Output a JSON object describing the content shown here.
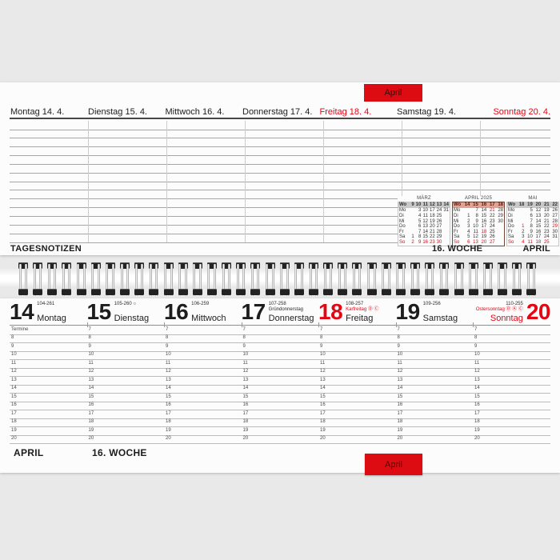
{
  "colors": {
    "accent_red": "#e30613",
    "tab_red": "#dd0b12",
    "page_bg": "#fcfcfd",
    "background": "#e9e9e9",
    "minical_header_bg": "#c9c9c9",
    "minical_april_header_bg": "#e0a292"
  },
  "tabs": {
    "top_label": "April",
    "bottom_label": "April"
  },
  "top_page": {
    "day_headers": [
      {
        "label": "Montag 14. 4.",
        "red": false
      },
      {
        "label": "Dienstag 15. 4.",
        "red": false
      },
      {
        "label": "Mittwoch 16. 4.",
        "red": false
      },
      {
        "label": "Donnerstag 17. 4.",
        "red": false
      },
      {
        "label": "Freitag 18. 4.",
        "red": true
      },
      {
        "label": "Samstag 19. 4.",
        "red": false
      },
      {
        "label": "Sonntag 20. 4.",
        "red": true
      }
    ],
    "notes_label": "TAGESNOTIZEN",
    "week_label": "16. WOCHE",
    "month_label": "APRIL",
    "mini_calendars": [
      {
        "title": "MÄRZ",
        "highlight": false,
        "week_col_label": "Wo",
        "weeks": [
          "9",
          "10",
          "11",
          "12",
          "13",
          "14"
        ],
        "rows": [
          {
            "d": "Mo",
            "red": false,
            "cells": [
              "",
              "3",
              "10",
              "17",
              "24",
              "31"
            ],
            "red_cells": []
          },
          {
            "d": "Di",
            "red": false,
            "cells": [
              "",
              "4",
              "11",
              "18",
              "25",
              ""
            ],
            "red_cells": []
          },
          {
            "d": "Mi",
            "red": false,
            "cells": [
              "",
              "5",
              "12",
              "19",
              "26",
              ""
            ],
            "red_cells": []
          },
          {
            "d": "Do",
            "red": false,
            "cells": [
              "",
              "6",
              "13",
              "20",
              "27",
              ""
            ],
            "red_cells": []
          },
          {
            "d": "Fr",
            "red": false,
            "cells": [
              "",
              "7",
              "14",
              "21",
              "28",
              ""
            ],
            "red_cells": []
          },
          {
            "d": "Sa",
            "red": false,
            "cells": [
              "1",
              "8",
              "15",
              "22",
              "29",
              ""
            ],
            "red_cells": []
          },
          {
            "d": "So",
            "red": true,
            "cells": [
              "2",
              "9",
              "16",
              "23",
              "30",
              ""
            ],
            "red_cells": []
          }
        ]
      },
      {
        "title": "APRIL 2025",
        "highlight": true,
        "week_col_label": "Wo",
        "weeks": [
          "14",
          "15",
          "16",
          "17",
          "18"
        ],
        "rows": [
          {
            "d": "Mo",
            "red": false,
            "cells": [
              "",
              "7",
              "14",
              "21",
              "28"
            ],
            "red_cells": [
              "21"
            ]
          },
          {
            "d": "Di",
            "red": false,
            "cells": [
              "1",
              "8",
              "15",
              "22",
              "29"
            ],
            "red_cells": []
          },
          {
            "d": "Mi",
            "red": false,
            "cells": [
              "2",
              "9",
              "16",
              "23",
              "30"
            ],
            "red_cells": []
          },
          {
            "d": "Do",
            "red": false,
            "cells": [
              "3",
              "10",
              "17",
              "24",
              ""
            ],
            "red_cells": []
          },
          {
            "d": "Fr",
            "red": false,
            "cells": [
              "4",
              "11",
              "18",
              "25",
              ""
            ],
            "red_cells": [
              "18"
            ]
          },
          {
            "d": "Sa",
            "red": false,
            "cells": [
              "5",
              "12",
              "19",
              "26",
              ""
            ],
            "red_cells": []
          },
          {
            "d": "So",
            "red": true,
            "cells": [
              "6",
              "13",
              "20",
              "27",
              ""
            ],
            "red_cells": []
          }
        ]
      },
      {
        "title": "MAI",
        "highlight": false,
        "week_col_label": "Wo",
        "weeks": [
          "18",
          "19",
          "20",
          "21",
          "22"
        ],
        "rows": [
          {
            "d": "Mo",
            "red": false,
            "cells": [
              "",
              "5",
              "12",
              "19",
              "26"
            ],
            "red_cells": []
          },
          {
            "d": "Di",
            "red": false,
            "cells": [
              "",
              "6",
              "13",
              "20",
              "27"
            ],
            "red_cells": []
          },
          {
            "d": "Mi",
            "red": false,
            "cells": [
              "",
              "7",
              "14",
              "21",
              "28"
            ],
            "red_cells": []
          },
          {
            "d": "Do",
            "red": false,
            "cells": [
              "1",
              "8",
              "15",
              "22",
              "29"
            ],
            "red_cells": [
              "1",
              "29"
            ]
          },
          {
            "d": "Fr",
            "red": false,
            "cells": [
              "2",
              "9",
              "16",
              "23",
              "30"
            ],
            "red_cells": []
          },
          {
            "d": "Sa",
            "red": false,
            "cells": [
              "3",
              "10",
              "17",
              "24",
              "31"
            ],
            "red_cells": []
          },
          {
            "d": "So",
            "red": true,
            "cells": [
              "4",
              "11",
              "18",
              "25",
              ""
            ],
            "red_cells": []
          }
        ]
      }
    ]
  },
  "bottom_page": {
    "days": [
      {
        "num": "14",
        "doy": "104-261",
        "name": "Montag",
        "num_red": false,
        "name_red": false,
        "holiday": "",
        "holiday_red": false,
        "moon": ""
      },
      {
        "num": "15",
        "doy": "105-260",
        "name": "Dienstag",
        "num_red": false,
        "name_red": false,
        "holiday": "",
        "holiday_red": false,
        "moon": "○"
      },
      {
        "num": "16",
        "doy": "106-259",
        "name": "Mittwoch",
        "num_red": false,
        "name_red": false,
        "holiday": "",
        "holiday_red": false,
        "moon": ""
      },
      {
        "num": "17",
        "doy": "107-258",
        "name": "Donnerstag",
        "num_red": false,
        "name_red": false,
        "holiday": "Gründonnerstag",
        "holiday_red": false,
        "moon": ""
      },
      {
        "num": "18",
        "doy": "108-257",
        "name": "Freitag",
        "num_red": true,
        "name_red": false,
        "holiday": "Karfreitag Ⓓ Ⓒ",
        "holiday_red": true,
        "moon": ""
      },
      {
        "num": "19",
        "doy": "109-256",
        "name": "Samstag",
        "num_red": false,
        "name_red": false,
        "holiday": "",
        "holiday_red": false,
        "moon": ""
      },
      {
        "num": "20",
        "doy": "110-255",
        "name": "Sonntag",
        "num_red": true,
        "name_red": true,
        "holiday": "Ostersonntag Ⓓ Ⓐ Ⓒ",
        "holiday_red": true,
        "moon": ""
      }
    ],
    "termine_label": "Termine",
    "hours_first": [
      "Termine",
      "8",
      "9",
      "10",
      "11",
      "12",
      "13",
      "14",
      "15",
      "16",
      "17",
      "18",
      "19",
      "20"
    ],
    "hours_rest": [
      "7",
      "8",
      "9",
      "10",
      "11",
      "12",
      "13",
      "14",
      "15",
      "16",
      "17",
      "18",
      "19",
      "20"
    ],
    "month_label": "APRIL",
    "week_label": "16. WOCHE"
  }
}
